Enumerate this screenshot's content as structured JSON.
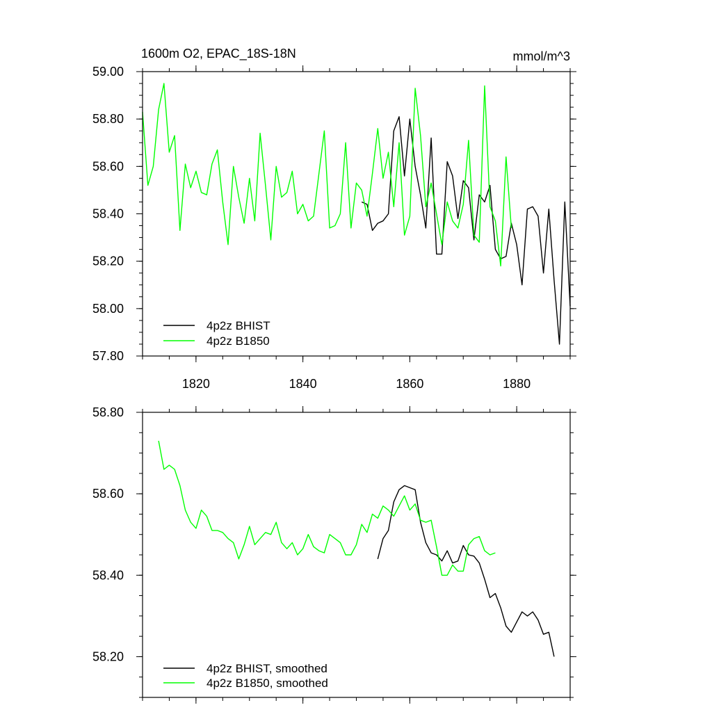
{
  "chart_data": [
    {
      "type": "line",
      "title": "1600m O2, EPAC_18S-18N",
      "units": "mmol/m^3",
      "xlim": [
        1810,
        1890
      ],
      "ylim": [
        57.8,
        59.0
      ],
      "x_ticks": [
        1820,
        1840,
        1860,
        1880
      ],
      "y_ticks": [
        57.8,
        58.0,
        58.2,
        58.4,
        58.6,
        58.8,
        59.0
      ],
      "y_tick_labels": [
        "57.80",
        "58.00",
        "58.20",
        "58.40",
        "58.60",
        "58.80",
        "59.00"
      ],
      "grid": false,
      "legend_position": "bottom-left",
      "series": [
        {
          "name": "4p2z BHIST",
          "color": "#000000",
          "start_year": 1851,
          "values": [
            58.45,
            58.44,
            58.33,
            58.36,
            58.37,
            58.4,
            58.75,
            58.81,
            58.56,
            58.8,
            58.6,
            58.48,
            58.34,
            58.72,
            58.23,
            58.23,
            58.62,
            58.56,
            58.38,
            58.54,
            58.51,
            58.29,
            58.48,
            58.45,
            58.52,
            58.25,
            58.21,
            58.22,
            58.36,
            58.27,
            58.1,
            58.42,
            58.43,
            58.39,
            58.15,
            58.42,
            58.12,
            57.85,
            58.45,
            58.01
          ]
        },
        {
          "name": "4p2z B1850",
          "color": "#00ff00",
          "start_year": 1810,
          "values": [
            58.83,
            58.52,
            58.6,
            58.84,
            58.95,
            58.66,
            58.73,
            58.33,
            58.61,
            58.51,
            58.58,
            58.49,
            58.48,
            58.61,
            58.67,
            58.45,
            58.27,
            58.6,
            58.47,
            58.36,
            58.55,
            58.37,
            58.74,
            58.52,
            58.29,
            58.6,
            58.47,
            58.49,
            58.58,
            58.4,
            58.44,
            58.37,
            58.39,
            58.57,
            58.75,
            58.34,
            58.35,
            58.4,
            58.7,
            58.34,
            58.53,
            58.5,
            58.39,
            58.57,
            58.76,
            58.55,
            58.66,
            58.43,
            58.7,
            58.31,
            58.39,
            58.93,
            58.73,
            58.43,
            58.53,
            58.4,
            58.27,
            58.45,
            58.37,
            58.34,
            58.44,
            58.71,
            58.31,
            58.28,
            58.94,
            58.43,
            58.37,
            58.18,
            58.64,
            58.34
          ]
        }
      ]
    },
    {
      "type": "line",
      "xlim": [
        1810,
        1890
      ],
      "ylim": [
        58.1,
        58.8
      ],
      "x_ticks": [
        1820,
        1840,
        1860,
        1880
      ],
      "y_ticks": [
        58.2,
        58.4,
        58.6,
        58.8
      ],
      "y_tick_labels": [
        "58.20",
        "58.40",
        "58.60",
        "58.80"
      ],
      "grid": false,
      "legend_position": "bottom-left",
      "series": [
        {
          "name": "4p2z BHIST, smoothed",
          "color": "#000000",
          "start_year": 1854,
          "values": [
            58.44,
            58.49,
            58.51,
            58.58,
            58.61,
            58.62,
            58.615,
            58.61,
            58.53,
            58.48,
            58.455,
            58.45,
            58.435,
            58.46,
            58.43,
            58.435,
            58.473,
            58.45,
            58.447,
            58.43,
            58.39,
            58.345,
            58.355,
            58.32,
            58.275,
            58.26,
            58.285,
            58.31,
            58.3,
            58.31,
            58.29,
            58.255,
            58.26,
            58.2
          ]
        },
        {
          "name": "4p2z B1850, smoothed",
          "color": "#00ff00",
          "start_year": 1813,
          "values": [
            58.73,
            58.66,
            58.67,
            58.66,
            58.62,
            58.56,
            58.53,
            58.515,
            58.56,
            58.545,
            58.51,
            58.51,
            58.505,
            58.49,
            58.48,
            58.44,
            58.475,
            58.52,
            58.475,
            58.49,
            58.505,
            58.5,
            58.53,
            58.48,
            58.465,
            58.48,
            58.45,
            58.465,
            58.5,
            58.47,
            58.46,
            58.455,
            58.5,
            58.49,
            58.48,
            58.45,
            58.45,
            58.475,
            58.525,
            58.505,
            58.55,
            58.54,
            58.57,
            58.56,
            58.545,
            58.57,
            58.595,
            58.56,
            58.575,
            58.535,
            58.53,
            58.535,
            58.47,
            58.4,
            58.4,
            58.425,
            58.41,
            58.41,
            58.475,
            58.49,
            58.495,
            58.46,
            58.45,
            58.455
          ]
        }
      ]
    }
  ]
}
